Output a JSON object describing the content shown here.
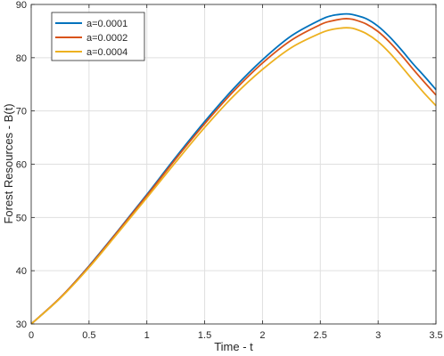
{
  "chart_data": {
    "type": "line",
    "title": "",
    "xlabel": "Time - t",
    "ylabel": "Forest Resources - B(t)",
    "xlim": [
      0,
      3.5
    ],
    "ylim": [
      30,
      90
    ],
    "xticks": [
      "0",
      "0.5",
      "1",
      "1.5",
      "2",
      "2.5",
      "3",
      "3.5"
    ],
    "yticks": [
      "30",
      "40",
      "50",
      "60",
      "70",
      "80",
      "90"
    ],
    "grid": true,
    "legend_position": "top-left",
    "x": [
      0,
      0.25,
      0.5,
      0.75,
      1.0,
      1.25,
      1.5,
      1.75,
      2.0,
      2.25,
      2.5,
      2.6,
      2.7,
      2.75,
      2.8,
      2.9,
      3.0,
      3.1,
      3.2,
      3.3,
      3.4,
      3.5
    ],
    "series": [
      {
        "name": "a=0.0001",
        "color": "#0072BD",
        "values": [
          30,
          34.9,
          40.9,
          47.5,
          54.3,
          61.3,
          68.0,
          74.2,
          79.6,
          84.1,
          87.1,
          87.9,
          88.2,
          88.2,
          88.0,
          87.3,
          85.9,
          83.9,
          81.5,
          78.9,
          76.5,
          74.0
        ]
      },
      {
        "name": "a=0.0002",
        "color": "#D95319",
        "values": [
          30,
          34.9,
          40.8,
          47.4,
          54.1,
          61.0,
          67.6,
          73.7,
          79.0,
          83.3,
          86.2,
          86.9,
          87.3,
          87.3,
          87.1,
          86.3,
          84.9,
          82.9,
          80.5,
          77.9,
          75.4,
          73.0
        ]
      },
      {
        "name": "a=0.0004",
        "color": "#EDB120",
        "values": [
          30,
          34.8,
          40.6,
          47.1,
          53.7,
          60.4,
          66.9,
          72.8,
          77.8,
          81.9,
          84.6,
          85.3,
          85.6,
          85.6,
          85.4,
          84.5,
          83.0,
          80.9,
          78.4,
          75.8,
          73.3,
          71.0
        ]
      }
    ]
  }
}
